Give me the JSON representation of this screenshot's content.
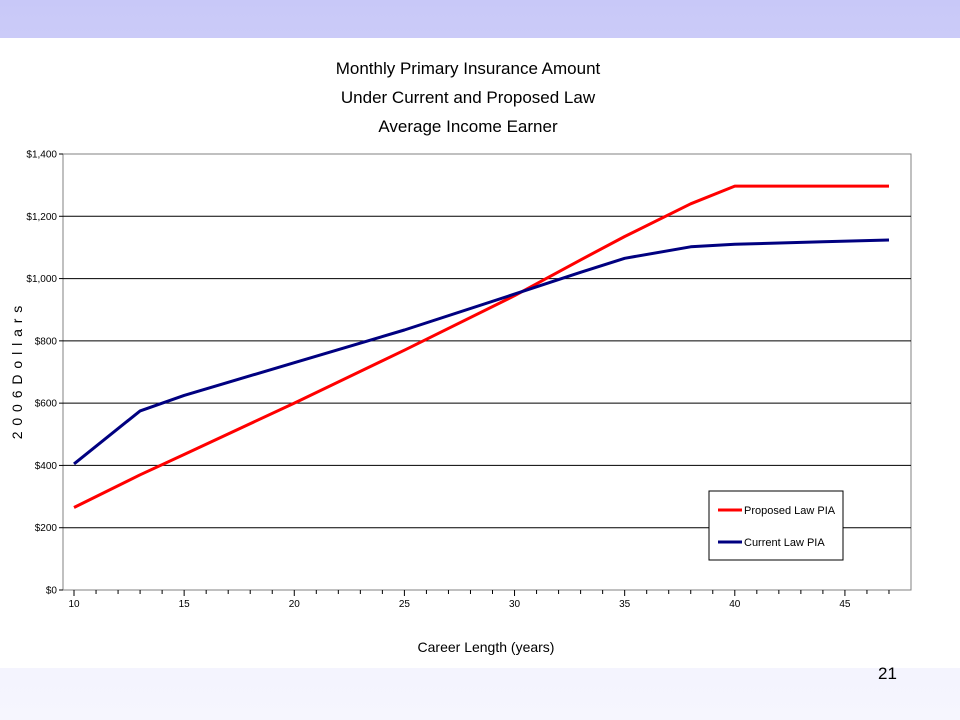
{
  "slide": {
    "number": "21"
  },
  "chart_data": {
    "type": "line",
    "title_lines": [
      "Monthly Primary Insurance Amount",
      "Under Current and Proposed Law",
      "Average Income Earner"
    ],
    "xlabel": "Career Length (years)",
    "ylabel": "2 0 0 6  D o l l a r s",
    "xlim": [
      9.5,
      48
    ],
    "ylim": [
      0,
      1400
    ],
    "x_ticks": [
      10,
      15,
      20,
      25,
      30,
      35,
      40,
      45
    ],
    "y_ticks": [
      0,
      200,
      400,
      600,
      800,
      1000,
      1200,
      1400
    ],
    "y_tick_labels": [
      "$0",
      "$200",
      "$400",
      "$600",
      "$800",
      "$1,000",
      "$1,200",
      "$1,400"
    ],
    "grid": "horizontal",
    "legend_position": "bottom-right",
    "series": [
      {
        "name": "Proposed Law PIA",
        "color": "#ff0000",
        "x": [
          10,
          13,
          15,
          20,
          25,
          30,
          33,
          35,
          38,
          40,
          47
        ],
        "y": [
          265,
          370,
          435,
          600,
          770,
          945,
          1060,
          1135,
          1240,
          1297,
          1297
        ]
      },
      {
        "name": "Current Law PIA",
        "color": "#000080",
        "x": [
          10,
          13,
          15,
          20,
          25,
          30,
          33,
          35,
          38,
          40,
          44,
          47
        ],
        "y": [
          405,
          575,
          625,
          730,
          835,
          950,
          1020,
          1065,
          1102,
          1110,
          1118,
          1124
        ]
      }
    ]
  }
}
